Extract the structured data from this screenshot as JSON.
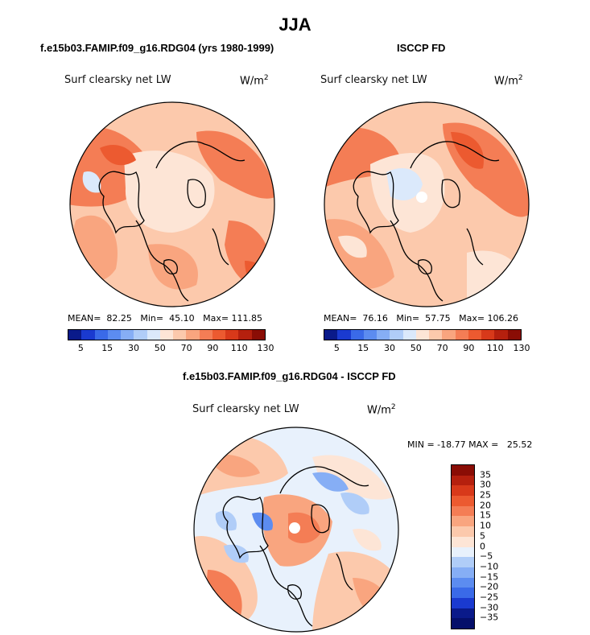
{
  "figure_title": "JJA",
  "panels": [
    {
      "title": "f.e15b03.FAMIP.f09_g16.RDG04 (yrs 1980-1999)",
      "variable": "Surf clearsky net LW",
      "unit_base": "W/m",
      "unit_exp": "2",
      "stats": "MEAN=  82.25   Min=  45.10   Max= 111.85",
      "colorbar_ticks": [
        "5",
        "15",
        "30",
        "50",
        "70",
        "90",
        "110",
        "130"
      ]
    },
    {
      "title": "ISCCP FD",
      "variable": "Surf clearsky net LW",
      "unit_base": "W/m",
      "unit_exp": "2",
      "stats": "MEAN=  76.16   Min=  57.75   Max= 106.26",
      "colorbar_ticks": [
        "5",
        "15",
        "30",
        "50",
        "70",
        "90",
        "110",
        "130"
      ]
    },
    {
      "title": "f.e15b03.FAMIP.f09_g16.RDG04 - ISCCP FD",
      "variable": "Surf clearsky net LW",
      "unit_base": "W/m",
      "unit_exp": "2",
      "stats": "MIN = -18.77 MAX =   25.52",
      "colorbar_ticks": [
        "35",
        "30",
        "25",
        "20",
        "15",
        "10",
        "5",
        "0",
        "−5",
        "−10",
        "−15",
        "−20",
        "−25",
        "−30",
        "−35"
      ]
    }
  ],
  "colors": {
    "abs_scale": [
      "#0a1a8a",
      "#1a3ad0",
      "#3a6ae8",
      "#5c8cf0",
      "#86aef5",
      "#b0cdf8",
      "#dbe9fb",
      "#fde5d6",
      "#fcc9ac",
      "#f9a57f",
      "#f47d55",
      "#ec5a30",
      "#d8391a",
      "#b5200e",
      "#8a0d05"
    ],
    "diff_scale": [
      "#8a0d05",
      "#b5200e",
      "#d8391a",
      "#ec5a30",
      "#f47d55",
      "#f9a57f",
      "#fcc9ac",
      "#fde5d6",
      "#e8f1fc",
      "#b0cdf8",
      "#86aef5",
      "#5c8cf0",
      "#3a6ae8",
      "#1a3ad0",
      "#0a1a8a",
      "#050f6a"
    ]
  }
}
